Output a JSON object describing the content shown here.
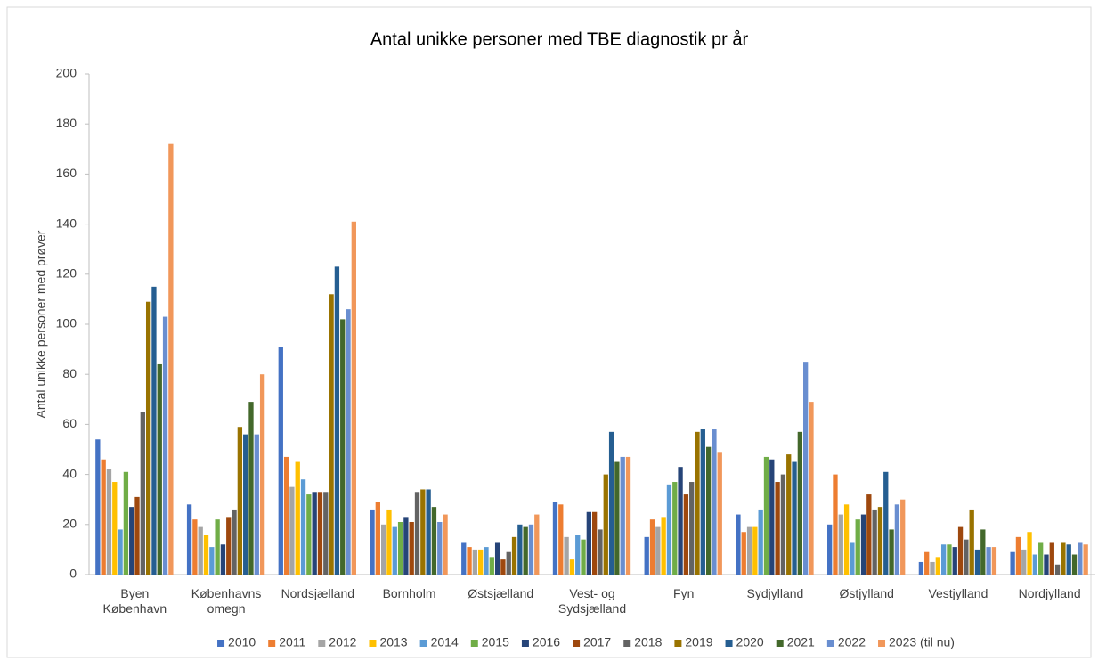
{
  "chart_data": {
    "type": "bar",
    "title": "Antal unikke personer med TBE diagnostik pr år",
    "y_label": "Antal unikke personer  med prøver",
    "categories": [
      "Byen København",
      "Københavns omegn",
      "Nordsjælland",
      "Bornholm",
      "Østsjælland",
      "Vest- og Sydsjælland",
      "Fyn",
      "Sydjylland",
      "Østjylland",
      "Vestjylland",
      "Nordjylland"
    ],
    "series": [
      {
        "name": "2010",
        "color": "#4472c4",
        "values": [
          54,
          28,
          91,
          26,
          13,
          29,
          15,
          24,
          20,
          5,
          9
        ]
      },
      {
        "name": "2011",
        "color": "#ed7d31",
        "values": [
          46,
          22,
          47,
          29,
          11,
          28,
          22,
          17,
          40,
          9,
          15
        ]
      },
      {
        "name": "2012",
        "color": "#a5a5a5",
        "values": [
          42,
          19,
          35,
          20,
          10,
          15,
          19,
          19,
          24,
          5,
          10
        ]
      },
      {
        "name": "2013",
        "color": "#ffc000",
        "values": [
          37,
          16,
          45,
          26,
          10,
          6,
          23,
          19,
          28,
          7,
          17
        ]
      },
      {
        "name": "2014",
        "color": "#5b9bd5",
        "values": [
          18,
          11,
          38,
          19,
          11,
          16,
          36,
          26,
          13,
          12,
          8
        ]
      },
      {
        "name": "2015",
        "color": "#70ad47",
        "values": [
          41,
          22,
          32,
          21,
          7,
          14,
          37,
          47,
          22,
          12,
          13
        ]
      },
      {
        "name": "2016",
        "color": "#264478",
        "values": [
          27,
          12,
          33,
          23,
          13,
          25,
          43,
          46,
          24,
          11,
          8
        ]
      },
      {
        "name": "2017",
        "color": "#9e480e",
        "values": [
          31,
          23,
          33,
          21,
          6,
          25,
          32,
          37,
          32,
          19,
          13
        ]
      },
      {
        "name": "2018",
        "color": "#636363",
        "values": [
          65,
          26,
          33,
          33,
          9,
          18,
          37,
          40,
          26,
          14,
          4
        ]
      },
      {
        "name": "2019",
        "color": "#997300",
        "values": [
          109,
          59,
          112,
          34,
          15,
          40,
          57,
          48,
          27,
          26,
          13
        ]
      },
      {
        "name": "2020",
        "color": "#255e91",
        "values": [
          115,
          56,
          123,
          34,
          20,
          57,
          58,
          45,
          41,
          10,
          12
        ]
      },
      {
        "name": "2021",
        "color": "#43682b",
        "values": [
          84,
          69,
          102,
          27,
          19,
          45,
          51,
          57,
          18,
          18,
          8
        ]
      },
      {
        "name": "2022",
        "color": "#698ed0",
        "values": [
          103,
          56,
          106,
          21,
          20,
          47,
          58,
          85,
          28,
          11,
          13
        ]
      },
      {
        "name": "2023 (til nu)",
        "color": "#f1975a",
        "values": [
          172,
          80,
          141,
          24,
          24,
          47,
          49,
          69,
          30,
          11,
          12
        ]
      }
    ],
    "ylim": [
      0,
      200
    ],
    "yticks": [
      0,
      20,
      40,
      60,
      80,
      100,
      120,
      140,
      160,
      180,
      200
    ],
    "legend": "bottom"
  }
}
